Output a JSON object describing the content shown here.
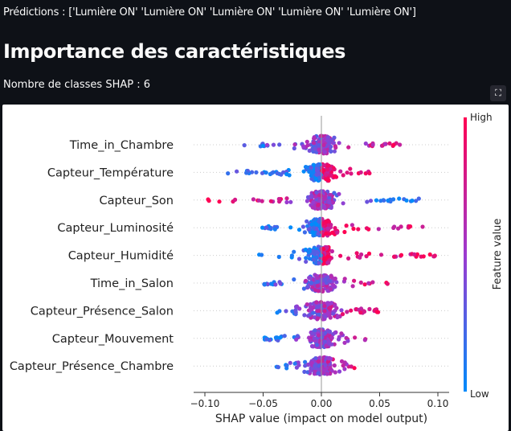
{
  "header": {
    "predictions": "Prédictions : ['Lumière ON' 'Lumière ON' 'Lumière ON' 'Lumière ON' 'Lumière ON']",
    "title": "Importance des caractéristiques",
    "shap_classes": "Nombre de classes SHAP : 6",
    "fullscreen_icon": "fullscreen-icon"
  },
  "chart_data": {
    "type": "scatter",
    "subtype": "shap-beeswarm",
    "xlabel": "SHAP value (impact on model output)",
    "xlim": [
      -0.11,
      0.11
    ],
    "xticks": [
      -0.1,
      -0.05,
      0.0,
      0.05,
      0.1
    ],
    "xtick_labels": [
      "−0.10",
      "−0.05",
      "0.00",
      "0.05",
      "0.10"
    ],
    "features": [
      "Time_in_Chambre",
      "Capteur_Température",
      "Capteur_Son",
      "Capteur_Luminosité",
      "Capteur_Humidité",
      "Time_in_Salon",
      "Capteur_Présence_Salon",
      "Capteur_Mouvement",
      "Capteur_Présence_Chambre"
    ],
    "spread": [
      [
        -0.085,
        0.068
      ],
      [
        -0.082,
        0.042
      ],
      [
        -0.098,
        0.085
      ],
      [
        -0.052,
        0.088
      ],
      [
        -0.058,
        0.1
      ],
      [
        -0.052,
        0.058
      ],
      [
        -0.04,
        0.05
      ],
      [
        -0.05,
        0.038
      ],
      [
        -0.04,
        0.03
      ]
    ],
    "colorbar": {
      "label": "Feature value",
      "high": "High",
      "low": "Low",
      "color_high": "#ff0052",
      "color_low": "#008bfb"
    },
    "grid": false,
    "zero_line": true
  }
}
